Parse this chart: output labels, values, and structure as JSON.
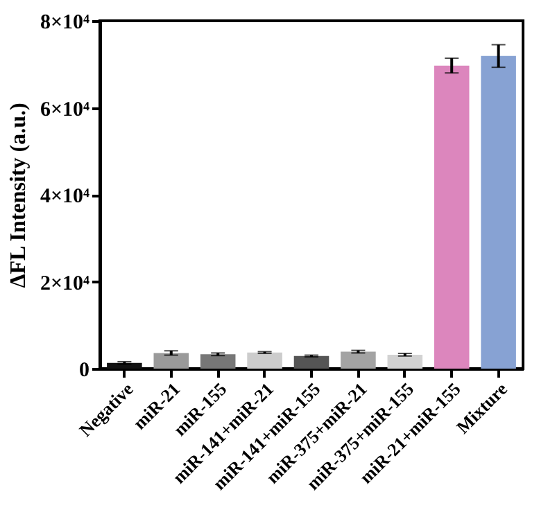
{
  "chart_data": {
    "type": "bar",
    "ylabel": "ΔFL Intensity (a.u.)",
    "categories": [
      "Negative",
      "miR-21",
      "miR-155",
      "miR-141+miR-21",
      "miR-141+miR-155",
      "miR-375+miR-21",
      "miR-375+miR-155",
      "miR-21+miR-155",
      "Mixture"
    ],
    "values": [
      1300,
      3600,
      3300,
      3700,
      2900,
      3900,
      3200,
      69700,
      71900
    ],
    "errors": [
      300,
      500,
      300,
      200,
      200,
      300,
      300,
      1700,
      2600
    ],
    "colors": [
      "#111111",
      "#9a9a9a",
      "#777777",
      "#cccccc",
      "#555555",
      "#a3a3a3",
      "#d2d2d2",
      "#dc86bd",
      "#87a2d3"
    ],
    "ylim": [
      0,
      80000
    ],
    "yticks": [
      0,
      {
        "value": 20000,
        "label": "2×10⁴"
      },
      {
        "value": 40000,
        "label": "4×10⁴"
      },
      {
        "value": 60000,
        "label": "6×10⁴"
      },
      {
        "value": 80000,
        "label": "8×10⁴"
      }
    ]
  }
}
